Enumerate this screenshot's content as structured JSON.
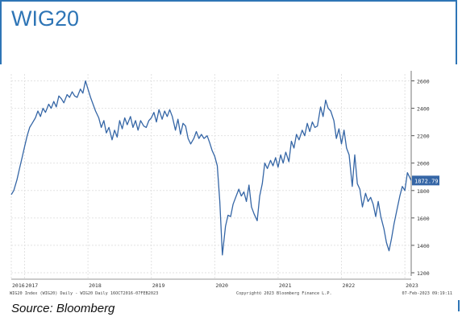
{
  "page": {
    "title": "WIG20",
    "source": "Source: Bloomberg"
  },
  "colors": {
    "accent": "#2e75b6",
    "line": "#3566a6",
    "grid": "#e2e2e2",
    "label_bg": "#3566a6"
  },
  "chart_data": {
    "type": "line",
    "title": "",
    "xlabel": "",
    "ylabel": "",
    "x_range": [
      2016.79,
      2023.1
    ],
    "ylim": [
      1200,
      2650
    ],
    "yticks": [
      1200,
      1400,
      1600,
      1800,
      2000,
      2200,
      2400,
      2600
    ],
    "xtick_labels": [
      {
        "label": "2016",
        "x": 2016.79
      },
      {
        "label": "2017",
        "x": 2017.0
      },
      {
        "label": "2018",
        "x": 2018.0
      },
      {
        "label": "2019",
        "x": 2019.0
      },
      {
        "label": "2020",
        "x": 2020.0
      },
      {
        "label": "2021",
        "x": 2021.0
      },
      {
        "label": "2022",
        "x": 2022.0
      },
      {
        "label": "2023",
        "x": 2023.0
      }
    ],
    "last_value_label": "1872.79",
    "footer_left": "WIG20 Index (WIG20) Daily - WIG20  Daily 16OCT2016-07FEB2023",
    "footer_center": "Copyright© 2023 Bloomberg Finance L.P.",
    "footer_right": "07-Feb-2023 09:19:11",
    "series": [
      {
        "x": [
          2016.79,
          2016.83,
          2016.88,
          2016.92,
          2016.96,
          2017.0,
          2017.04,
          2017.08,
          2017.12,
          2017.17,
          2017.21,
          2017.25,
          2017.29,
          2017.33,
          2017.38,
          2017.42,
          2017.46,
          2017.5,
          2017.54,
          2017.58,
          2017.62,
          2017.67,
          2017.71,
          2017.75,
          2017.79,
          2017.83,
          2017.88,
          2017.92,
          2017.96,
          2018.0,
          2018.04,
          2018.08,
          2018.12,
          2018.17,
          2018.21,
          2018.25,
          2018.29,
          2018.33,
          2018.38,
          2018.42,
          2018.46,
          2018.5,
          2018.54,
          2018.58,
          2018.62,
          2018.67,
          2018.71,
          2018.75,
          2018.79,
          2018.83,
          2018.88,
          2018.92,
          2018.96,
          2019.0,
          2019.04,
          2019.08,
          2019.12,
          2019.17,
          2019.21,
          2019.25,
          2019.29,
          2019.33,
          2019.38,
          2019.42,
          2019.46,
          2019.5,
          2019.54,
          2019.58,
          2019.62,
          2019.67,
          2019.71,
          2019.75,
          2019.79,
          2019.83,
          2019.88,
          2019.92,
          2019.96,
          2020.0,
          2020.04,
          2020.08,
          2020.12,
          2020.17,
          2020.21,
          2020.25,
          2020.29,
          2020.33,
          2020.38,
          2020.42,
          2020.46,
          2020.5,
          2020.54,
          2020.58,
          2020.62,
          2020.67,
          2020.71,
          2020.75,
          2020.79,
          2020.83,
          2020.88,
          2020.92,
          2020.96,
          2021.0,
          2021.04,
          2021.08,
          2021.12,
          2021.17,
          2021.21,
          2021.25,
          2021.29,
          2021.33,
          2021.38,
          2021.42,
          2021.46,
          2021.5,
          2021.54,
          2021.58,
          2021.62,
          2021.67,
          2021.71,
          2021.75,
          2021.79,
          2021.83,
          2021.88,
          2021.92,
          2021.96,
          2022.0,
          2022.04,
          2022.08,
          2022.12,
          2022.17,
          2022.21,
          2022.25,
          2022.29,
          2022.33,
          2022.38,
          2022.42,
          2022.46,
          2022.5,
          2022.54,
          2022.58,
          2022.62,
          2022.67,
          2022.71,
          2022.75,
          2022.79,
          2022.83,
          2022.88,
          2022.92,
          2022.96,
          2023.0,
          2023.04,
          2023.1
        ],
        "values": [
          1770,
          1800,
          1880,
          1960,
          2040,
          2120,
          2200,
          2260,
          2290,
          2330,
          2380,
          2340,
          2400,
          2370,
          2430,
          2400,
          2450,
          2410,
          2490,
          2470,
          2440,
          2500,
          2480,
          2520,
          2490,
          2480,
          2540,
          2510,
          2600,
          2540,
          2480,
          2430,
          2380,
          2330,
          2260,
          2310,
          2220,
          2260,
          2170,
          2240,
          2190,
          2310,
          2250,
          2330,
          2280,
          2340,
          2260,
          2310,
          2240,
          2310,
          2270,
          2260,
          2310,
          2330,
          2370,
          2300,
          2390,
          2320,
          2380,
          2340,
          2390,
          2340,
          2240,
          2320,
          2210,
          2290,
          2270,
          2180,
          2140,
          2180,
          2230,
          2180,
          2210,
          2180,
          2200,
          2150,
          2090,
          2050,
          1980,
          1720,
          1330,
          1540,
          1620,
          1610,
          1700,
          1750,
          1810,
          1760,
          1790,
          1720,
          1840,
          1680,
          1630,
          1580,
          1760,
          1850,
          2000,
          1960,
          2020,
          1980,
          2040,
          1970,
          2060,
          2000,
          2080,
          2010,
          2160,
          2110,
          2210,
          2170,
          2240,
          2200,
          2290,
          2230,
          2300,
          2260,
          2270,
          2410,
          2340,
          2460,
          2400,
          2380,
          2310,
          2180,
          2250,
          2140,
          2240,
          2110,
          2060,
          1830,
          2060,
          1850,
          1810,
          1680,
          1780,
          1720,
          1750,
          1700,
          1610,
          1720,
          1610,
          1520,
          1420,
          1360,
          1450,
          1560,
          1670,
          1760,
          1830,
          1800,
          1930,
          1873
        ]
      }
    ]
  }
}
